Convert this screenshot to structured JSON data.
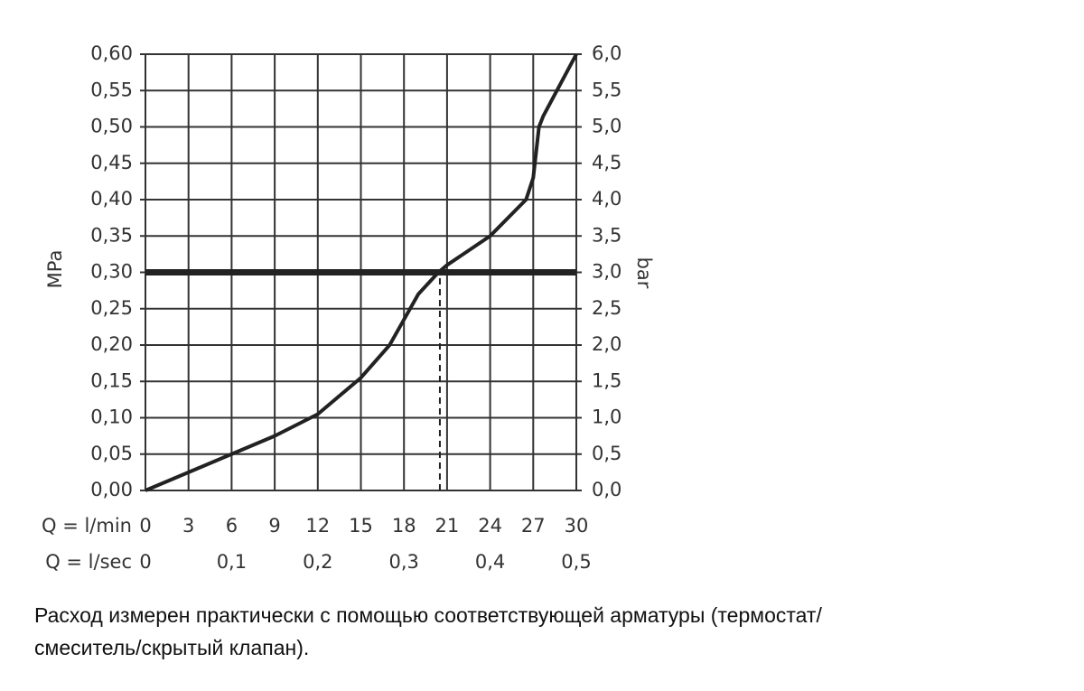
{
  "chart_data": {
    "type": "line",
    "x": [
      0,
      3,
      6,
      9,
      12,
      15,
      17,
      18,
      19,
      20.4,
      21,
      24,
      26.5,
      27,
      27.4,
      27.7,
      30
    ],
    "series": [
      {
        "color": "#222222",
        "values": [
          0,
          0.025,
          0.05,
          0.075,
          0.105,
          0.155,
          0.2,
          0.235,
          0.27,
          0.3,
          0.31,
          0.35,
          0.4,
          0.43,
          0.5,
          0.515,
          0.6
        ]
      }
    ],
    "xlim": [
      0,
      30
    ],
    "xticks": [
      0,
      3,
      6,
      9,
      12,
      15,
      18,
      21,
      24,
      27,
      30
    ],
    "xlabel": "Q = l/min",
    "x2lim": [
      0,
      0.5
    ],
    "x2ticks": [
      0,
      {
        "value": 0.1,
        "label": "0,1"
      },
      {
        "value": 0.2,
        "label": "0,2"
      },
      {
        "value": 0.3,
        "label": "0,3"
      },
      {
        "value": 0.4,
        "label": "0,4"
      },
      {
        "value": 0.5,
        "label": "0,5"
      }
    ],
    "x2label": "Q = l/sec",
    "ylim": [
      0,
      0.6
    ],
    "yticks": [
      {
        "value": 0,
        "label": "0,00"
      },
      {
        "value": 0.05,
        "label": "0,05"
      },
      {
        "value": 0.1,
        "label": "0,10"
      },
      {
        "value": 0.15,
        "label": "0,15"
      },
      {
        "value": 0.2,
        "label": "0,20"
      },
      {
        "value": 0.25,
        "label": "0,25"
      },
      {
        "value": 0.3,
        "label": "0,30"
      },
      {
        "value": 0.35,
        "label": "0,35"
      },
      {
        "value": 0.4,
        "label": "0,40"
      },
      {
        "value": 0.45,
        "label": "0,45"
      },
      {
        "value": 0.5,
        "label": "0,50"
      },
      {
        "value": 0.55,
        "label": "0,55"
      },
      {
        "value": 0.6,
        "label": "0,60"
      }
    ],
    "ylabel": "MPa",
    "y2lim": [
      0,
      6
    ],
    "y2ticks": [
      {
        "value": 0,
        "label": "0,0"
      },
      {
        "value": 0.5,
        "label": "0,5"
      },
      {
        "value": 1,
        "label": "1,0"
      },
      {
        "value": 1.5,
        "label": "1,5"
      },
      {
        "value": 2,
        "label": "2,0"
      },
      {
        "value": 2.5,
        "label": "2,5"
      },
      {
        "value": 3,
        "label": "3,0"
      },
      {
        "value": 3.5,
        "label": "3,5"
      },
      {
        "value": 4,
        "label": "4,0"
      },
      {
        "value": 4.5,
        "label": "4,5"
      },
      {
        "value": 5,
        "label": "5,0"
      },
      {
        "value": 5.5,
        "label": "5,5"
      },
      {
        "value": 6,
        "label": "6,0"
      }
    ],
    "y2label": "bar",
    "reference_y": 0.3,
    "marker_x": 20.5,
    "grid": true,
    "caption": [
      "Расход измерен практически с помощью соответствующей арматуры (термостат/",
      "смеситель/скрытый клапан)."
    ]
  }
}
